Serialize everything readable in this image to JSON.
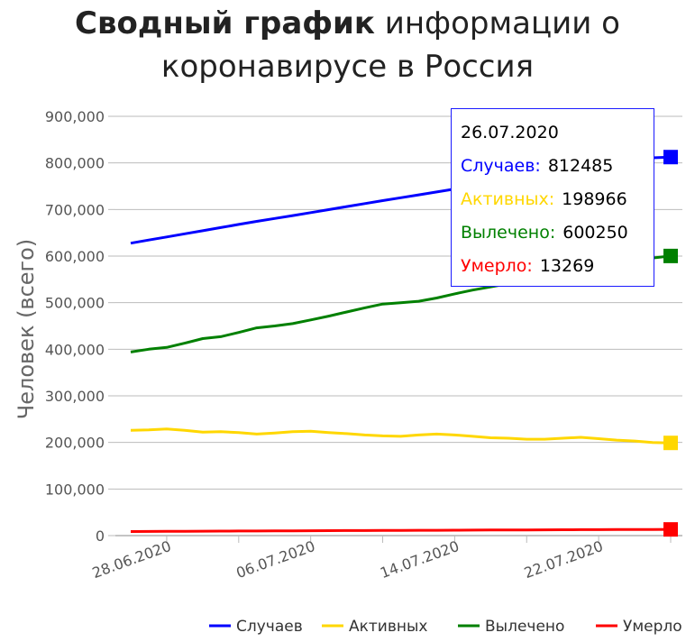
{
  "title": {
    "bold": "Сводный график",
    "normal": "информации о",
    "line2": "коронавирусе в Россия"
  },
  "tooltip": {
    "date": "26.07.2020",
    "rows": [
      {
        "label": "Случаев:",
        "value": "812485",
        "color": "#0000ff"
      },
      {
        "label": "Активных:",
        "value": "198966",
        "color": "#ffd700"
      },
      {
        "label": "Вылечено:",
        "value": "600250",
        "color": "#008000"
      },
      {
        "label": "Умерло:",
        "value": "13269",
        "color": "#ff0000"
      }
    ]
  },
  "chart_data": {
    "type": "line",
    "ylabel": "Человек (всего)",
    "ylim": [
      0,
      900000
    ],
    "yticks": [
      0,
      100000,
      200000,
      300000,
      400000,
      500000,
      600000,
      700000,
      800000,
      900000
    ],
    "ytick_labels": [
      "0",
      "100,000",
      "200,000",
      "300,000",
      "400,000",
      "500,000",
      "600,000",
      "700,000",
      "800,000",
      "900,000"
    ],
    "xtick_labels": [
      "28.06.2020",
      "06.07.2020",
      "14.07.2020",
      "22.07.2020"
    ],
    "x": [
      "26.06.2020",
      "27.06.2020",
      "28.06.2020",
      "29.06.2020",
      "30.06.2020",
      "01.07.2020",
      "02.07.2020",
      "03.07.2020",
      "04.07.2020",
      "05.07.2020",
      "06.07.2020",
      "07.07.2020",
      "08.07.2020",
      "09.07.2020",
      "10.07.2020",
      "11.07.2020",
      "12.07.2020",
      "13.07.2020",
      "14.07.2020",
      "15.07.2020",
      "16.07.2020",
      "17.07.2020",
      "18.07.2020",
      "19.07.2020",
      "20.07.2020",
      "21.07.2020",
      "22.07.2020",
      "23.07.2020",
      "24.07.2020",
      "25.07.2020",
      "26.07.2020"
    ],
    "grid": true,
    "legend_position": "bottom-right",
    "series": [
      {
        "name": "Случаев",
        "color": "#0000ff",
        "values": [
          627600,
          634400,
          641000,
          647800,
          654400,
          661200,
          667900,
          674500,
          680700,
          687000,
          693200,
          699700,
          706200,
          712700,
          719000,
          725300,
          731500,
          737700,
          744000,
          750100,
          756200,
          762500,
          768600,
          774700,
          780800,
          786900,
          793000,
          799100,
          805000,
          810900,
          812485
        ]
      },
      {
        "name": "Активных",
        "color": "#ffd700",
        "values": [
          226000,
          227000,
          229000,
          226000,
          222000,
          223000,
          221000,
          218000,
          220000,
          223000,
          224000,
          221000,
          219000,
          216000,
          214000,
          213000,
          216000,
          218000,
          216000,
          213000,
          210000,
          209000,
          207000,
          207000,
          209000,
          211000,
          208000,
          205000,
          203000,
          200000,
          198966
        ]
      },
      {
        "name": "Вылечено",
        "color": "#008000",
        "values": [
          394000,
          400000,
          404000,
          413000,
          423000,
          427000,
          436000,
          446000,
          450000,
          455000,
          463000,
          471000,
          480000,
          489000,
          497000,
          500000,
          503000,
          510000,
          519000,
          527000,
          534000,
          541000,
          547000,
          552000,
          557000,
          565000,
          573000,
          582000,
          590000,
          596000,
          600250
        ]
      },
      {
        "name": "Умерло",
        "color": "#ff0000",
        "values": [
          8800,
          8950,
          9100,
          9300,
          9500,
          9650,
          9800,
          9950,
          10100,
          10300,
          10450,
          10600,
          10750,
          10900,
          11050,
          11200,
          11350,
          11500,
          11650,
          11800,
          11950,
          12100,
          12250,
          12400,
          12550,
          12700,
          12850,
          13000,
          13100,
          13200,
          13269
        ]
      }
    ]
  }
}
